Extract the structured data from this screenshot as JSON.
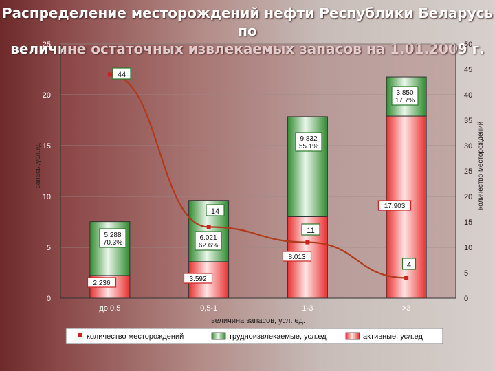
{
  "title_line1": "Распределение месторождений нефти Республики Беларусь по",
  "title_line2": "величине остаточных извлекаемых запасов на 1.01.2009 г.",
  "chart_data": {
    "type": "bar",
    "categories": [
      "до 0,5",
      "0,5-1",
      "1-3",
      ">3"
    ],
    "series": [
      {
        "name": "активные, усл.ед",
        "values": [
          2.236,
          3.592,
          8.013,
          17.903
        ],
        "color": "#e83030"
      },
      {
        "name": "трудноизвлекаемые, усл.ед",
        "values": [
          5.288,
          6.021,
          9.832,
          3.85
        ],
        "color": "#2f8a2f"
      },
      {
        "name": "количество месторождений",
        "values": [
          44,
          14,
          11,
          4
        ],
        "color": "#b03a1a",
        "axis": "right",
        "kind": "line"
      }
    ],
    "active_labels": [
      "2.236",
      "3.592",
      "8.013",
      "17.903"
    ],
    "hard_labels": [
      [
        "5.288",
        "70.3%"
      ],
      [
        "6.021",
        "62.6%"
      ],
      [
        "9.832",
        "55.1%"
      ],
      [
        "3.850",
        "17.7%"
      ]
    ],
    "count_labels": [
      "44",
      "14",
      "11",
      "4"
    ],
    "xlabel": "величина запасов, усл. ед.",
    "ylabel": "запасы,усл.ед",
    "y2label": "количество месторождений",
    "ylim": [
      0,
      25
    ],
    "y2lim": [
      0,
      50
    ],
    "yticks": [
      "0",
      "5",
      "10",
      "15",
      "20",
      "25"
    ],
    "y2ticks": [
      "0",
      "5",
      "10",
      "15",
      "20",
      "25",
      "30",
      "35",
      "40",
      "45",
      "50"
    ],
    "legend_position": "bottom"
  }
}
